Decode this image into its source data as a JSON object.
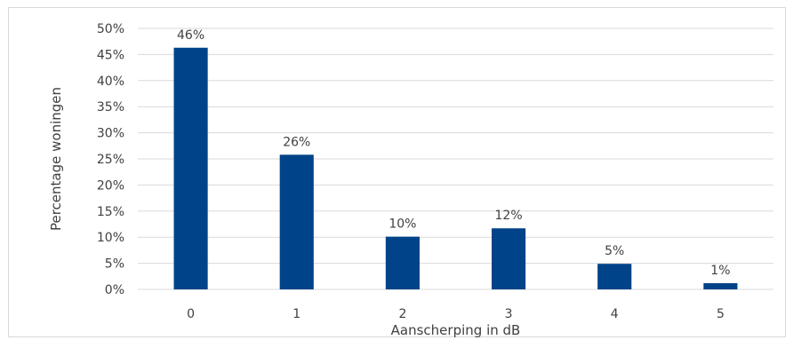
{
  "chart_data": {
    "type": "bar",
    "categories": [
      "0",
      "1",
      "2",
      "3",
      "4",
      "5"
    ],
    "values": [
      46.3,
      25.8,
      10.1,
      11.7,
      4.9,
      1.2
    ],
    "data_labels": [
      "46%",
      "26%",
      "10%",
      "12%",
      "5%",
      "1%"
    ],
    "title": "",
    "xlabel": "Aanscherping in dB",
    "ylabel": "Percentage woningen",
    "ylim": [
      0,
      50
    ],
    "yticks": [
      0,
      5,
      10,
      15,
      20,
      25,
      30,
      35,
      40,
      45,
      50
    ],
    "ytick_labels": [
      "0%",
      "5%",
      "10%",
      "15%",
      "20%",
      "25%",
      "30%",
      "35%",
      "40%",
      "45%",
      "50%"
    ],
    "grid": true,
    "bar_color": "#004388",
    "grid_color": "#d9d9d9"
  }
}
